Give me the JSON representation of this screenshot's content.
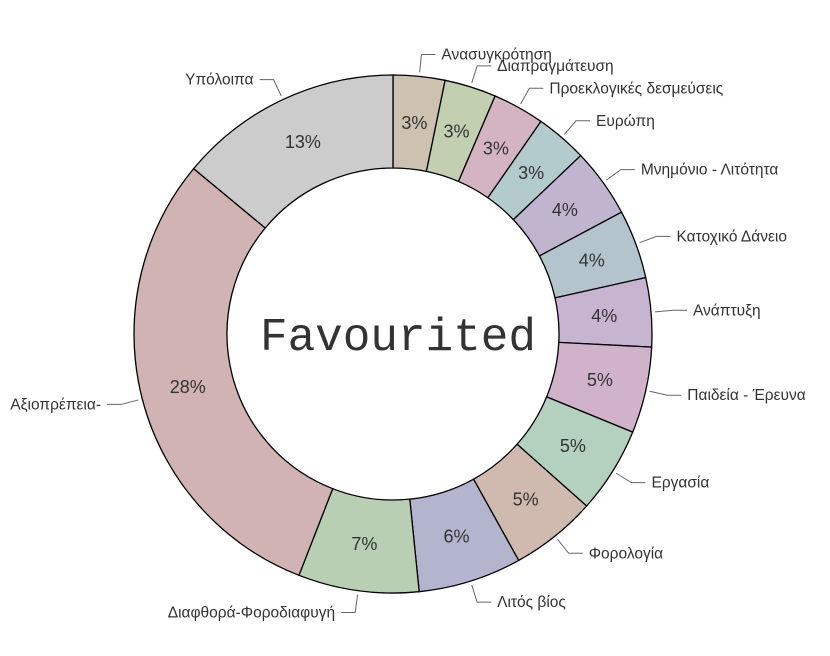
{
  "chart_data": {
    "type": "pie",
    "variant": "donut",
    "center_text": "Favourited",
    "slices": [
      {
        "label": "Ανασυγκρότηση",
        "percent_label": "3%",
        "value": 3,
        "color": "#cdc1b0"
      },
      {
        "label": "Διαπραγμάτευση",
        "percent_label": "3%",
        "value": 3,
        "color": "#c2cfb1"
      },
      {
        "label": "Προεκλογικές δεσμεύσεις",
        "percent_label": "3%",
        "value": 3,
        "color": "#d4b3c2"
      },
      {
        "label": "Ευρώπη",
        "percent_label": "3%",
        "value": 3,
        "color": "#b4cbcd"
      },
      {
        "label": "Μνημόνιο - Λιτότητα",
        "percent_label": "4%",
        "value": 4,
        "color": "#c1b4cf"
      },
      {
        "label": "Κατοχικό Δάνειο",
        "percent_label": "4%",
        "value": 4,
        "color": "#b4c4cc"
      },
      {
        "label": "Ανάπτυξη",
        "percent_label": "4%",
        "value": 4,
        "color": "#c6b4d0"
      },
      {
        "label": "Παιδεία - Έρευνα",
        "percent_label": "5%",
        "value": 5,
        "color": "#d0b3cb"
      },
      {
        "label": "Εργασία",
        "percent_label": "5%",
        "value": 5,
        "color": "#b4d0be"
      },
      {
        "label": "Φορολογία",
        "percent_label": "5%",
        "value": 5,
        "color": "#d0bab0"
      },
      {
        "label": "Λιτός βίος",
        "percent_label": "6%",
        "value": 6,
        "color": "#b3b4ce"
      },
      {
        "label": "Διαφθορά-Φοροδιαφυγή",
        "percent_label": "7%",
        "value": 7,
        "color": "#b9cfb3"
      },
      {
        "label": "Αξιοπρέπεια-",
        "percent_label": "28%",
        "value": 28,
        "color": "#d1b3b3"
      },
      {
        "label": "Υπόλοιπα",
        "percent_label": "13%",
        "value": 13,
        "color": "#cccccc"
      }
    ]
  }
}
